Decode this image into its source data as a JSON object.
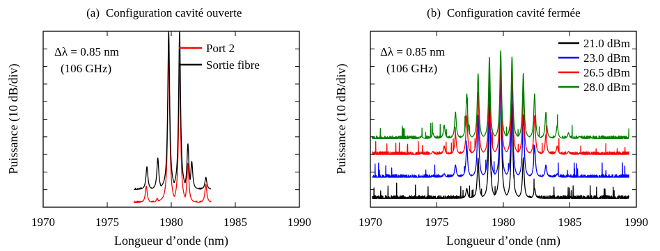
{
  "chart_data": [
    {
      "type": "line",
      "panel_label": "(a)",
      "title": "Configuration cavité ouverte",
      "xlabel": "Longueur d’onde (nm)",
      "ylabel": "Puissance (10 dB/div)",
      "xlim": [
        1970,
        1990
      ],
      "ylim": [
        0,
        100
      ],
      "y_tick_count": 10,
      "x_ticks": [
        "1970",
        "1975",
        "1980",
        "1985",
        "1990"
      ],
      "annotation_lines": [
        "Δλ = 0.85 nm",
        "(106 GHz)"
      ],
      "legend_position": "top-right",
      "baseline": {
        "x_range": [
          1977.1,
          1983.1
        ]
      },
      "series": [
        {
          "name": "Port 2",
          "color": "#ff0000",
          "baseline": 2.5,
          "peaks": [
            [
              1978.05,
              12
            ],
            [
              1978.9,
              5
            ],
            [
              1979.8,
              90
            ],
            [
              1980.65,
              82
            ],
            [
              1981.3,
              25
            ],
            [
              1982.7,
              13
            ]
          ]
        },
        {
          "name": "Sortie fibre",
          "color": "#000000",
          "baseline": 10,
          "peaks": [
            [
              1978.1,
              23
            ],
            [
              1978.95,
              28
            ],
            [
              1979.8,
              100
            ],
            [
              1980.65,
              100
            ],
            [
              1981.3,
              36
            ],
            [
              1981.6,
              26
            ],
            [
              1982.7,
              17
            ]
          ]
        }
      ]
    },
    {
      "type": "line",
      "panel_label": "(b)",
      "title": "Configuration cavité fermée",
      "xlabel": "Longueur d’onde (nm)",
      "ylabel": "Puissance (10 dB/div)",
      "xlim": [
        1970,
        1990
      ],
      "ylim": [
        0,
        100
      ],
      "y_tick_count": 10,
      "x_ticks": [
        "1970",
        "1975",
        "1980",
        "1985",
        "1990"
      ],
      "annotation_lines": [
        "Δλ = 0.85 nm",
        "(106 GHz)"
      ],
      "legend_position": "top-right",
      "peak_center": 1979.8,
      "peak_spacing": 0.85,
      "series": [
        {
          "name": "21.0 dBm",
          "color": "#000000",
          "baseline": 5,
          "center_peak": 76,
          "decay": 0.28,
          "n_peaks": 3
        },
        {
          "name": "23.0 dBm",
          "color": "#0000ff",
          "baseline": 17,
          "center_peak": 78,
          "decay": 0.135,
          "n_peaks": 7
        },
        {
          "name": "26.5 dBm",
          "color": "#ff0000",
          "baseline": 30,
          "center_peak": 82,
          "decay": 0.095,
          "n_peaks": 10
        },
        {
          "name": "28.0 dBm",
          "color": "#008000",
          "baseline": 39,
          "center_peak": 89,
          "decay": 0.075,
          "n_peaks": 11
        }
      ]
    }
  ]
}
